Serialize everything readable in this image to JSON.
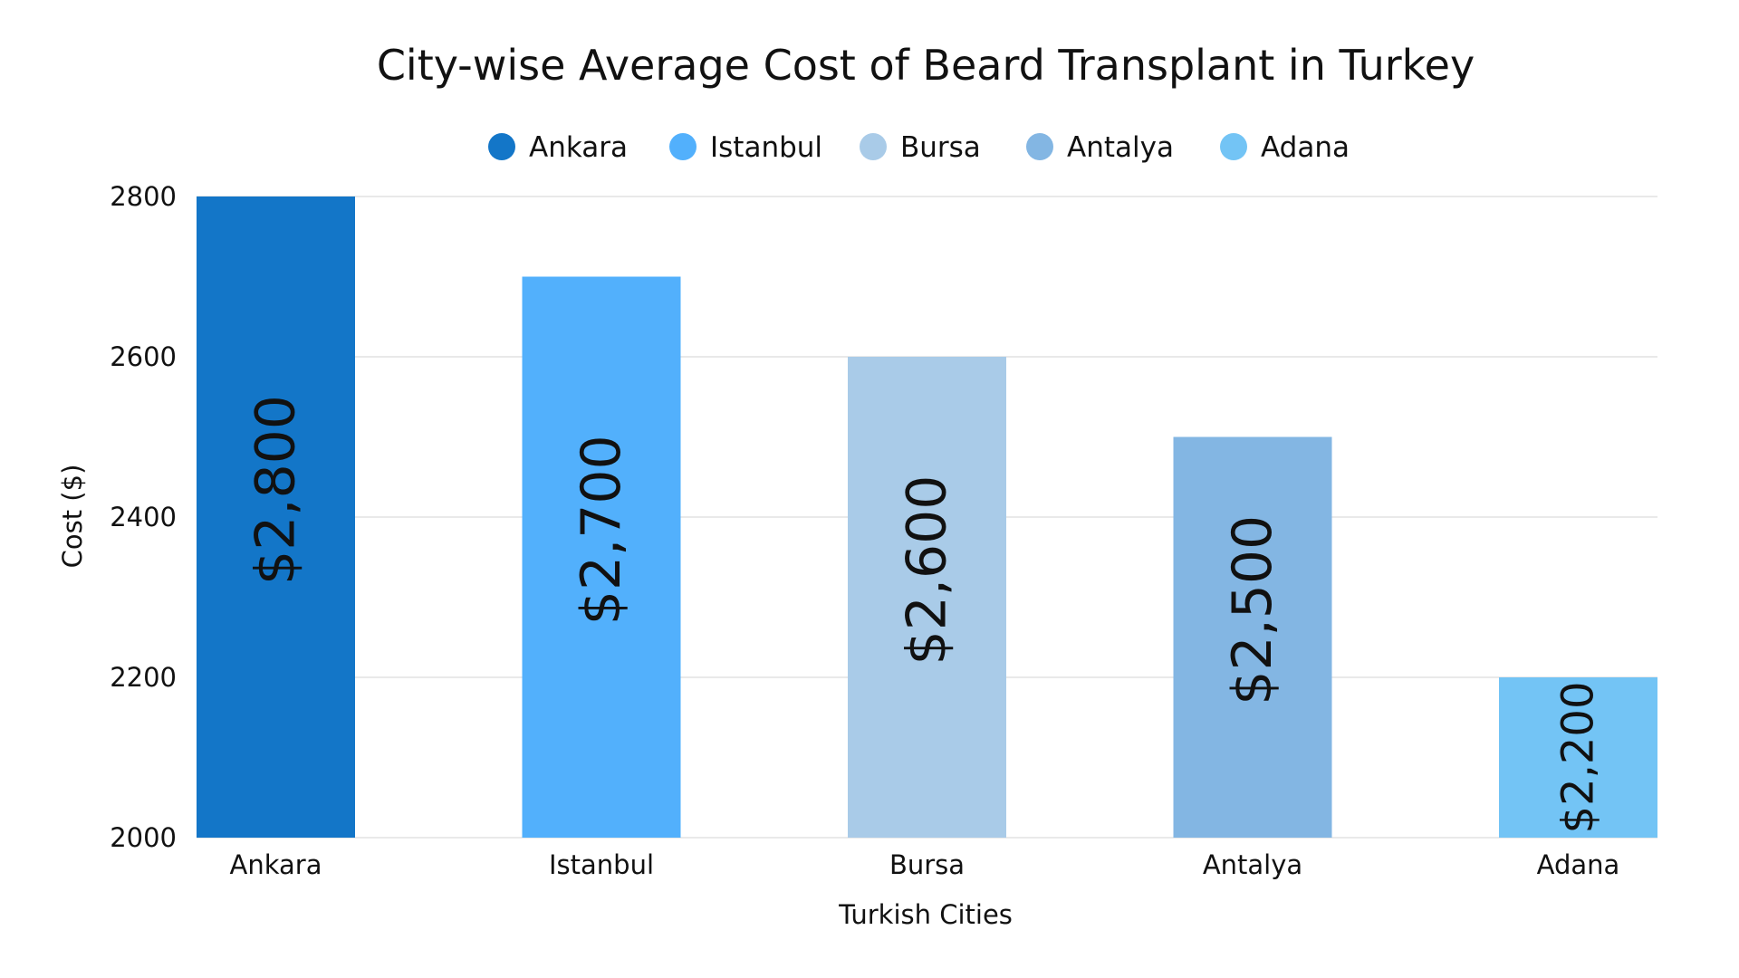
{
  "chart_data": {
    "type": "bar",
    "title": "City-wise Average Cost of Beard Transplant in Turkey",
    "xlabel": "Turkish Cities",
    "ylabel": "Cost ($)",
    "categories": [
      "Ankara",
      "Istanbul",
      "Bursa",
      "Antalya",
      "Adana"
    ],
    "values": [
      2800,
      2700,
      2600,
      2500,
      2200
    ],
    "data_labels": [
      "$2,800",
      "$2,700",
      "$2,600",
      "$2,500",
      "$2,200"
    ],
    "colors": [
      "#1376c8",
      "#52b0fc",
      "#a9cbe8",
      "#83b6e3",
      "#73c4f5"
    ],
    "legend": [
      "Ankara",
      "Istanbul",
      "Bursa",
      "Antalya",
      "Adana"
    ],
    "legend_position": "top-center",
    "ylim": [
      2000,
      2800
    ],
    "yticks": [
      2000,
      2200,
      2400,
      2600,
      2800
    ],
    "grid": true
  }
}
